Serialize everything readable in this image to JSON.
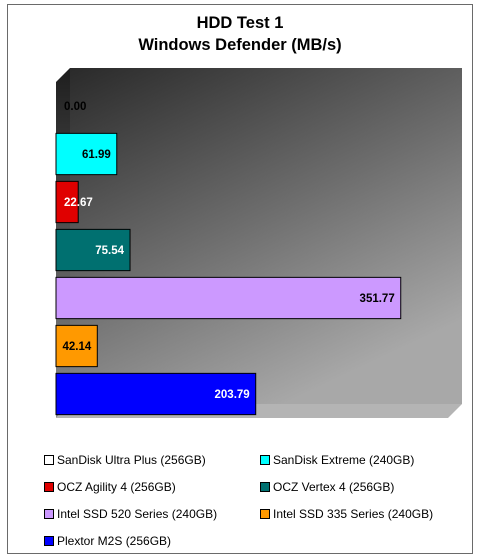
{
  "chart_data": {
    "type": "bar",
    "orientation": "horizontal",
    "title": "HDD Test 1",
    "subtitle": "Windows Defender (MB/s)",
    "xlim": [
      0,
      400
    ],
    "grid": false,
    "legend_position": "bottom",
    "series": [
      {
        "name": "SanDisk Ultra Plus (256GB)",
        "value": 0.0,
        "label": "0.00",
        "color": "#ffffff"
      },
      {
        "name": "SanDisk Extreme (240GB)",
        "value": 61.99,
        "label": "61.99",
        "color": "#00ffff"
      },
      {
        "name": "OCZ Agility 4 (256GB)",
        "value": 22.67,
        "label": "22.67",
        "color": "#e00000"
      },
      {
        "name": "OCZ Vertex 4 (256GB)",
        "value": 75.54,
        "label": "75.54",
        "color": "#007070"
      },
      {
        "name": "Intel SSD 520 Series (240GB)",
        "value": 351.77,
        "label": "351.77",
        "color": "#cc99ff"
      },
      {
        "name": "Intel SSD 335 Series (240GB)",
        "value": 42.14,
        "label": "42.14",
        "color": "#ff9900"
      },
      {
        "name": "Plextor M2S (256GB)",
        "value": 203.79,
        "label": "203.79",
        "color": "#0000ff"
      }
    ]
  }
}
